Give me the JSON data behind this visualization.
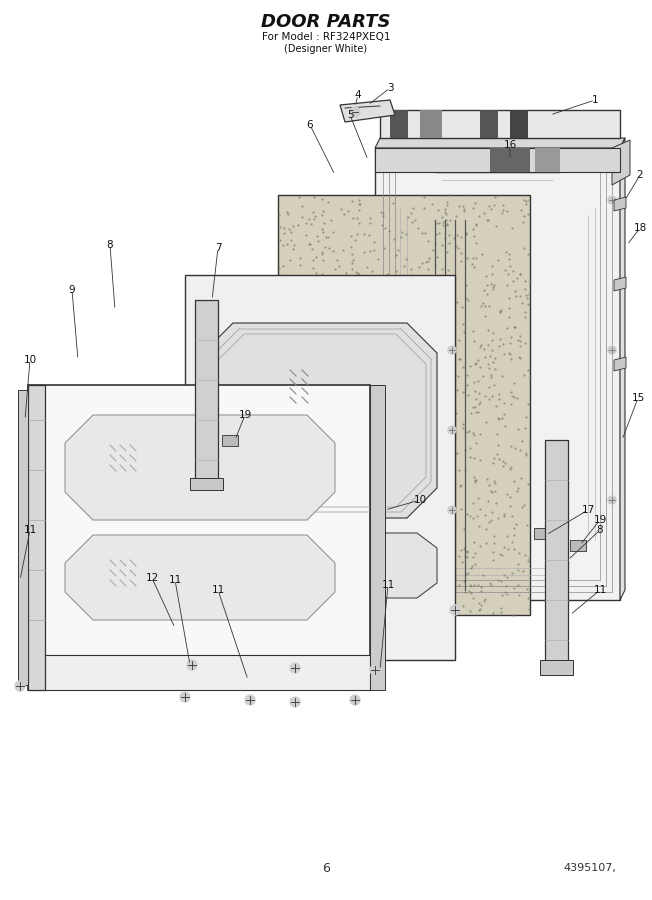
{
  "title": "DOOR PARTS",
  "subtitle1": "For Model : RF324PXEQ1",
  "subtitle2": "(Designer White)",
  "page_number": "6",
  "doc_number": "4395107,",
  "background_color": "#ffffff",
  "line_color": "#333333",
  "label_color": "#111111",
  "title_color": "#111111"
}
